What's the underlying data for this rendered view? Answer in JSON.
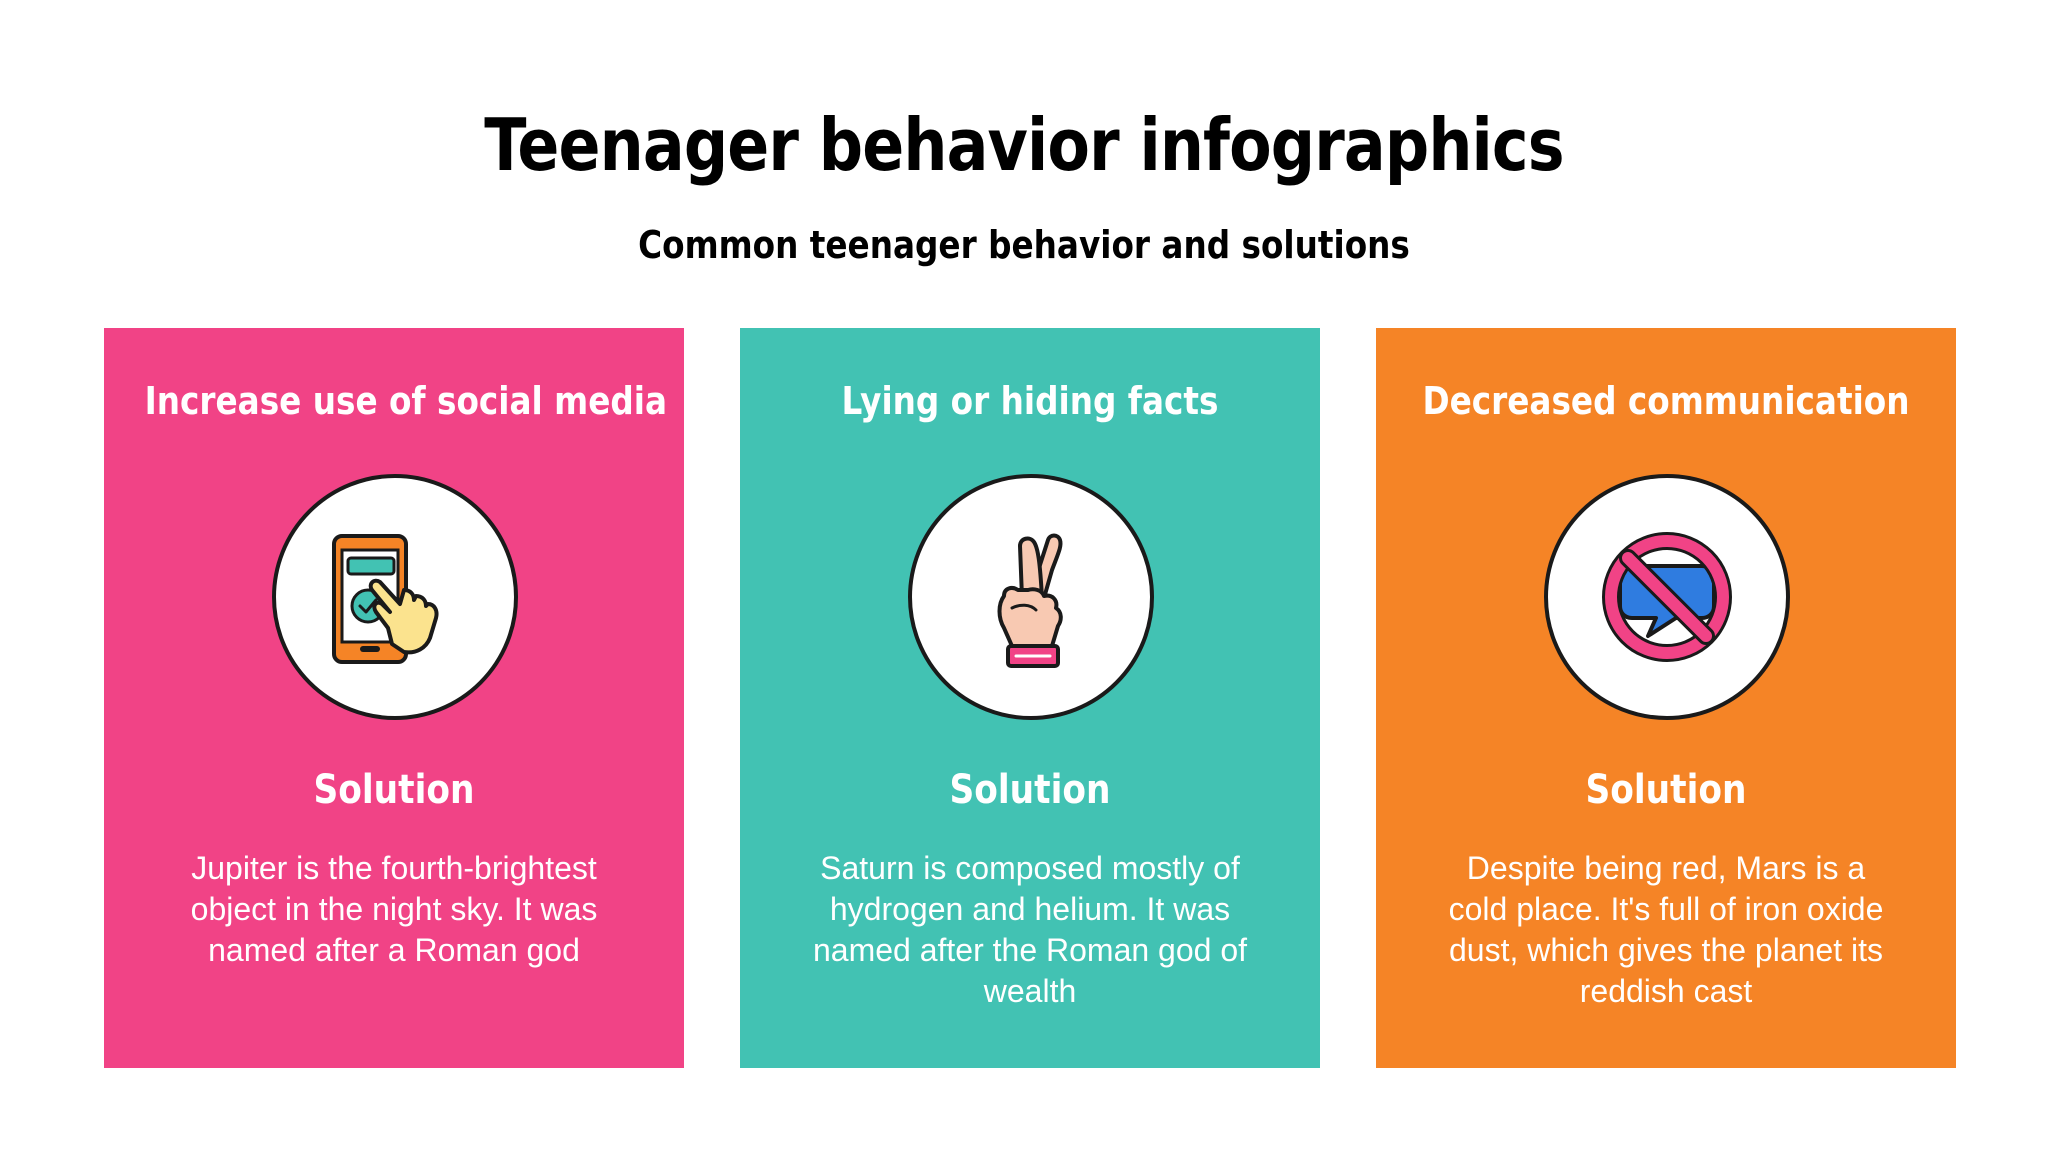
{
  "title": "Teenager behavior infographics",
  "subtitle": "Common teenager behavior and solutions",
  "cards": [
    {
      "heading": "Increase use of social media",
      "icon": "smartphone-tap-icon",
      "color": "#F14386",
      "solution_label": "Solution",
      "solution_text": "Jupiter is the fourth-brightest object in the night sky. It was named after a Roman god"
    },
    {
      "heading": "Lying or hiding facts",
      "icon": "crossed-fingers-icon",
      "color": "#42C2B3",
      "solution_label": "Solution",
      "solution_text": "Saturn is composed mostly of hydrogen and helium. It was named after the Roman god of wealth"
    },
    {
      "heading": "Decreased communication",
      "icon": "no-chat-icon",
      "color": "#F58426",
      "solution_label": "Solution",
      "solution_text": "Despite being red, Mars is a cold place. It's full of iron oxide dust, which gives the planet its reddish cast"
    }
  ]
}
